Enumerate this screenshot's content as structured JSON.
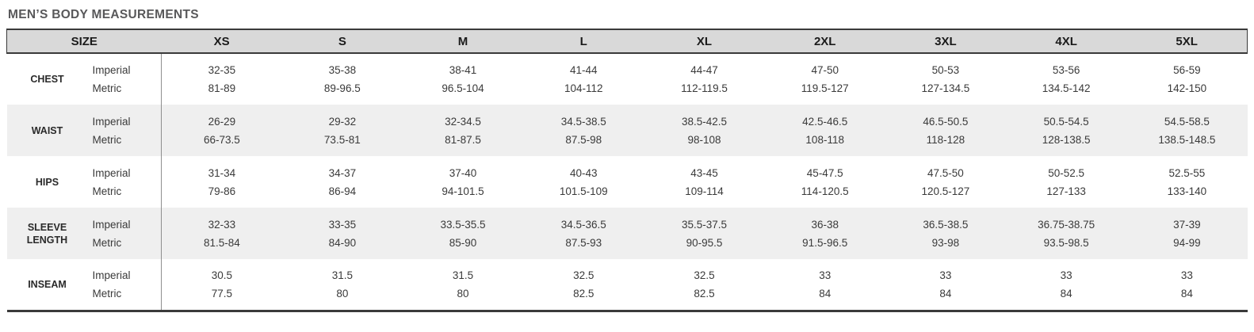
{
  "title": "MEN’S BODY MEASUREMENTS",
  "table": {
    "size_header": "SIZE",
    "columns": [
      "XS",
      "S",
      "M",
      "L",
      "XL",
      "2XL",
      "3XL",
      "4XL",
      "5XL"
    ],
    "unit_labels": {
      "imperial": "Imperial",
      "metric": "Metric"
    },
    "rows": [
      {
        "label": "CHEST",
        "imperial": [
          "32-35",
          "35-38",
          "38-41",
          "41-44",
          "44-47",
          "47-50",
          "50-53",
          "53-56",
          "56-59"
        ],
        "metric": [
          "81-89",
          "89-96.5",
          "96.5-104",
          "104-112",
          "112-119.5",
          "119.5-127",
          "127-134.5",
          "134.5-142",
          "142-150"
        ]
      },
      {
        "label": "WAIST",
        "imperial": [
          "26-29",
          "29-32",
          "32-34.5",
          "34.5-38.5",
          "38.5-42.5",
          "42.5-46.5",
          "46.5-50.5",
          "50.5-54.5",
          "54.5-58.5"
        ],
        "metric": [
          "66-73.5",
          "73.5-81",
          "81-87.5",
          "87.5-98",
          "98-108",
          "108-118",
          "118-128",
          "128-138.5",
          "138.5-148.5"
        ]
      },
      {
        "label": "HIPS",
        "imperial": [
          "31-34",
          "34-37",
          "37-40",
          "40-43",
          "43-45",
          "45-47.5",
          "47.5-50",
          "50-52.5",
          "52.5-55"
        ],
        "metric": [
          "79-86",
          "86-94",
          "94-101.5",
          "101.5-109",
          "109-114",
          "114-120.5",
          "120.5-127",
          "127-133",
          "133-140"
        ]
      },
      {
        "label": "SLEEVE LENGTH",
        "imperial": [
          "32-33",
          "33-35",
          "33.5-35.5",
          "34.5-36.5",
          "35.5-37.5",
          "36-38",
          "36.5-38.5",
          "36.75-38.75",
          "37-39"
        ],
        "metric": [
          "81.5-84",
          "84-90",
          "85-90",
          "87.5-93",
          "90-95.5",
          "91.5-96.5",
          "93-98",
          "93.5-98.5",
          "94-99"
        ]
      },
      {
        "label": "INSEAM",
        "imperial": [
          "30.5",
          "31.5",
          "31.5",
          "32.5",
          "32.5",
          "33",
          "33",
          "33",
          "33"
        ],
        "metric": [
          "77.5",
          "80",
          "80",
          "82.5",
          "82.5",
          "84",
          "84",
          "84",
          "84"
        ]
      }
    ]
  },
  "colors": {
    "header_background": "#d9d9d9",
    "alt_row_background": "#efefef",
    "border_dark": "#3a3a3a",
    "divider_gray": "#8e8e8e",
    "title_text": "#58585a",
    "body_text": "#3a3a3a"
  }
}
